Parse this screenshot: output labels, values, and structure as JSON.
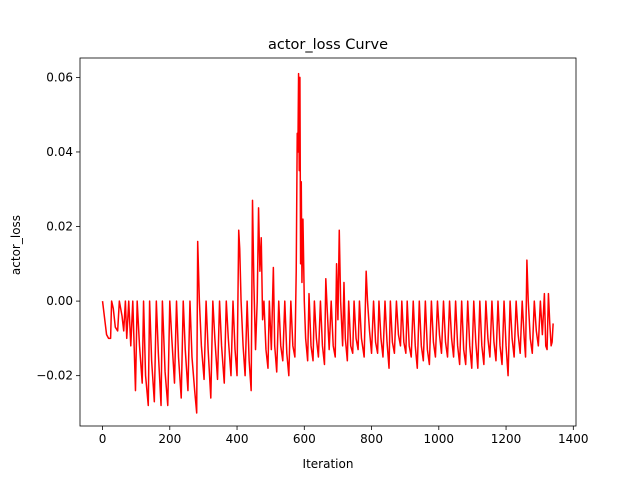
{
  "chart_data": {
    "type": "line",
    "title": "actor_loss Curve",
    "xlabel": "Iteration",
    "ylabel": "actor_loss",
    "xlim": [
      -67,
      1408
    ],
    "ylim": [
      -0.0335,
      0.0652
    ],
    "xticks": [
      0,
      200,
      400,
      600,
      800,
      1000,
      1200,
      1400
    ],
    "yticks": [
      -0.02,
      0.0,
      0.02,
      0.04,
      0.06
    ],
    "ytick_labels": [
      "−0.02",
      "0.00",
      "0.02",
      "0.04",
      "0.06"
    ],
    "grid": false,
    "series": [
      {
        "color": "#ff0000",
        "points": [
          [
            0,
            0.0
          ],
          [
            8,
            -0.006
          ],
          [
            12,
            -0.009
          ],
          [
            18,
            -0.01
          ],
          [
            24,
            -0.01
          ],
          [
            27,
            0.0
          ],
          [
            32,
            -0.002
          ],
          [
            38,
            -0.007
          ],
          [
            45,
            -0.008
          ],
          [
            50,
            0.0
          ],
          [
            58,
            -0.004
          ],
          [
            63,
            -0.008
          ],
          [
            68,
            0.0
          ],
          [
            72,
            -0.01
          ],
          [
            78,
            0.0
          ],
          [
            84,
            -0.012
          ],
          [
            90,
            0.0
          ],
          [
            98,
            -0.024
          ],
          [
            103,
            0.0
          ],
          [
            110,
            -0.012
          ],
          [
            118,
            -0.022
          ],
          [
            122,
            0.0
          ],
          [
            128,
            -0.02
          ],
          [
            136,
            -0.028
          ],
          [
            140,
            0.0
          ],
          [
            146,
            -0.016
          ],
          [
            154,
            -0.027
          ],
          [
            160,
            0.0
          ],
          [
            166,
            -0.014
          ],
          [
            174,
            -0.028
          ],
          [
            178,
            0.0
          ],
          [
            186,
            -0.019
          ],
          [
            194,
            -0.028
          ],
          [
            200,
            0.0
          ],
          [
            206,
            -0.01
          ],
          [
            214,
            -0.022
          ],
          [
            220,
            0.0
          ],
          [
            226,
            -0.015
          ],
          [
            234,
            -0.026
          ],
          [
            240,
            0.0
          ],
          [
            246,
            -0.013
          ],
          [
            254,
            -0.024
          ],
          [
            260,
            0.0
          ],
          [
            266,
            -0.015
          ],
          [
            274,
            -0.024
          ],
          [
            280,
            -0.03
          ],
          [
            283,
            0.016
          ],
          [
            288,
            0.0
          ],
          [
            294,
            -0.012
          ],
          [
            302,
            -0.021
          ],
          [
            308,
            0.0
          ],
          [
            314,
            -0.013
          ],
          [
            322,
            -0.026
          ],
          [
            328,
            0.0
          ],
          [
            334,
            -0.01
          ],
          [
            342,
            -0.021
          ],
          [
            348,
            0.0
          ],
          [
            354,
            -0.012
          ],
          [
            362,
            -0.022
          ],
          [
            368,
            0.0
          ],
          [
            374,
            -0.01
          ],
          [
            382,
            -0.02
          ],
          [
            388,
            0.0
          ],
          [
            394,
            -0.013
          ],
          [
            400,
            -0.02
          ],
          [
            405,
            0.019
          ],
          [
            408,
            0.014
          ],
          [
            412,
            0.0
          ],
          [
            418,
            -0.012
          ],
          [
            424,
            -0.02
          ],
          [
            430,
            0.0
          ],
          [
            436,
            -0.016
          ],
          [
            442,
            -0.024
          ],
          [
            446,
            0.027
          ],
          [
            450,
            0.005
          ],
          [
            455,
            -0.013
          ],
          [
            460,
            0.0
          ],
          [
            464,
            0.025
          ],
          [
            468,
            0.008
          ],
          [
            472,
            0.017
          ],
          [
            476,
            -0.005
          ],
          [
            480,
            0.0
          ],
          [
            486,
            -0.013
          ],
          [
            492,
            -0.018
          ],
          [
            496,
            0.0
          ],
          [
            502,
            -0.013
          ],
          [
            508,
            0.009
          ],
          [
            512,
            -0.012
          ],
          [
            518,
            -0.019
          ],
          [
            524,
            0.0
          ],
          [
            530,
            -0.012
          ],
          [
            536,
            -0.016
          ],
          [
            542,
            0.0
          ],
          [
            548,
            -0.014
          ],
          [
            554,
            -0.02
          ],
          [
            560,
            0.0
          ],
          [
            566,
            -0.012
          ],
          [
            572,
            -0.015
          ],
          [
            576,
            0.008
          ],
          [
            579,
            0.045
          ],
          [
            581,
            0.04
          ],
          [
            583,
            0.061
          ],
          [
            585,
            0.035
          ],
          [
            587,
            0.06
          ],
          [
            589,
            0.01
          ],
          [
            591,
            0.032
          ],
          [
            593,
            0.005
          ],
          [
            596,
            0.022
          ],
          [
            600,
            0.0
          ],
          [
            604,
            -0.01
          ],
          [
            610,
            -0.016
          ],
          [
            614,
            0.002
          ],
          [
            620,
            -0.012
          ],
          [
            626,
            -0.016
          ],
          [
            630,
            0.0
          ],
          [
            636,
            -0.01
          ],
          [
            642,
            -0.015
          ],
          [
            648,
            0.0
          ],
          [
            654,
            -0.012
          ],
          [
            660,
            -0.017
          ],
          [
            664,
            0.006
          ],
          [
            668,
            -0.002
          ],
          [
            674,
            -0.013
          ],
          [
            680,
            0.0
          ],
          [
            686,
            -0.012
          ],
          [
            692,
            -0.015
          ],
          [
            696,
            0.01
          ],
          [
            700,
            -0.005
          ],
          [
            704,
            0.019
          ],
          [
            708,
            0.0
          ],
          [
            714,
            -0.012
          ],
          [
            718,
            0.005
          ],
          [
            722,
            -0.01
          ],
          [
            728,
            -0.016
          ],
          [
            732,
            0.0
          ],
          [
            738,
            -0.012
          ],
          [
            744,
            -0.014
          ],
          [
            748,
            0.0
          ],
          [
            754,
            -0.01
          ],
          [
            760,
            -0.013
          ],
          [
            764,
            0.0
          ],
          [
            770,
            -0.01
          ],
          [
            778,
            -0.015
          ],
          [
            784,
            0.008
          ],
          [
            788,
            0.0
          ],
          [
            794,
            -0.008
          ],
          [
            800,
            -0.014
          ],
          [
            806,
            0.0
          ],
          [
            812,
            -0.011
          ],
          [
            818,
            -0.014
          ],
          [
            822,
            0.0
          ],
          [
            828,
            -0.01
          ],
          [
            834,
            -0.015
          ],
          [
            840,
            0.0
          ],
          [
            846,
            -0.011
          ],
          [
            852,
            -0.018
          ],
          [
            856,
            0.0
          ],
          [
            862,
            -0.011
          ],
          [
            868,
            -0.014
          ],
          [
            874,
            0.0
          ],
          [
            880,
            -0.009
          ],
          [
            886,
            -0.012
          ],
          [
            890,
            0.0
          ],
          [
            896,
            -0.011
          ],
          [
            902,
            -0.014
          ],
          [
            906,
            0.0
          ],
          [
            912,
            -0.012
          ],
          [
            918,
            -0.015
          ],
          [
            924,
            0.0
          ],
          [
            930,
            -0.012
          ],
          [
            936,
            -0.018
          ],
          [
            942,
            0.0
          ],
          [
            948,
            -0.012
          ],
          [
            954,
            -0.016
          ],
          [
            960,
            0.0
          ],
          [
            966,
            -0.013
          ],
          [
            972,
            -0.017
          ],
          [
            978,
            0.0
          ],
          [
            984,
            -0.011
          ],
          [
            990,
            -0.015
          ],
          [
            996,
            0.0
          ],
          [
            1002,
            -0.009
          ],
          [
            1008,
            -0.014
          ],
          [
            1014,
            0.0
          ],
          [
            1020,
            -0.011
          ],
          [
            1026,
            -0.015
          ],
          [
            1032,
            0.0
          ],
          [
            1038,
            -0.01
          ],
          [
            1044,
            -0.015
          ],
          [
            1050,
            0.0
          ],
          [
            1056,
            -0.012
          ],
          [
            1062,
            -0.017
          ],
          [
            1068,
            0.0
          ],
          [
            1074,
            -0.013
          ],
          [
            1080,
            -0.017
          ],
          [
            1086,
            0.0
          ],
          [
            1092,
            -0.012
          ],
          [
            1098,
            -0.018
          ],
          [
            1104,
            0.0
          ],
          [
            1110,
            -0.011
          ],
          [
            1116,
            -0.018
          ],
          [
            1122,
            0.0
          ],
          [
            1128,
            -0.012
          ],
          [
            1134,
            -0.017
          ],
          [
            1140,
            0.0
          ],
          [
            1146,
            -0.01
          ],
          [
            1152,
            -0.015
          ],
          [
            1158,
            0.0
          ],
          [
            1164,
            -0.011
          ],
          [
            1170,
            -0.016
          ],
          [
            1176,
            0.0
          ],
          [
            1182,
            -0.012
          ],
          [
            1188,
            -0.017
          ],
          [
            1194,
            0.0
          ],
          [
            1200,
            -0.012
          ],
          [
            1206,
            -0.02
          ],
          [
            1212,
            0.0
          ],
          [
            1218,
            -0.01
          ],
          [
            1224,
            -0.015
          ],
          [
            1230,
            0.0
          ],
          [
            1236,
            -0.009
          ],
          [
            1242,
            -0.014
          ],
          [
            1248,
            0.0
          ],
          [
            1254,
            -0.01
          ],
          [
            1258,
            -0.015
          ],
          [
            1262,
            0.011
          ],
          [
            1266,
            0.0
          ],
          [
            1272,
            -0.01
          ],
          [
            1278,
            -0.014
          ],
          [
            1284,
            0.0
          ],
          [
            1290,
            -0.008
          ],
          [
            1296,
            -0.012
          ],
          [
            1302,
            0.0
          ],
          [
            1308,
            -0.009
          ],
          [
            1314,
            0.002
          ],
          [
            1318,
            -0.012
          ],
          [
            1322,
            -0.013
          ],
          [
            1326,
            0.002
          ],
          [
            1330,
            -0.006
          ],
          [
            1334,
            -0.012
          ],
          [
            1337,
            -0.011
          ],
          [
            1340,
            -0.006
          ]
        ]
      }
    ]
  }
}
